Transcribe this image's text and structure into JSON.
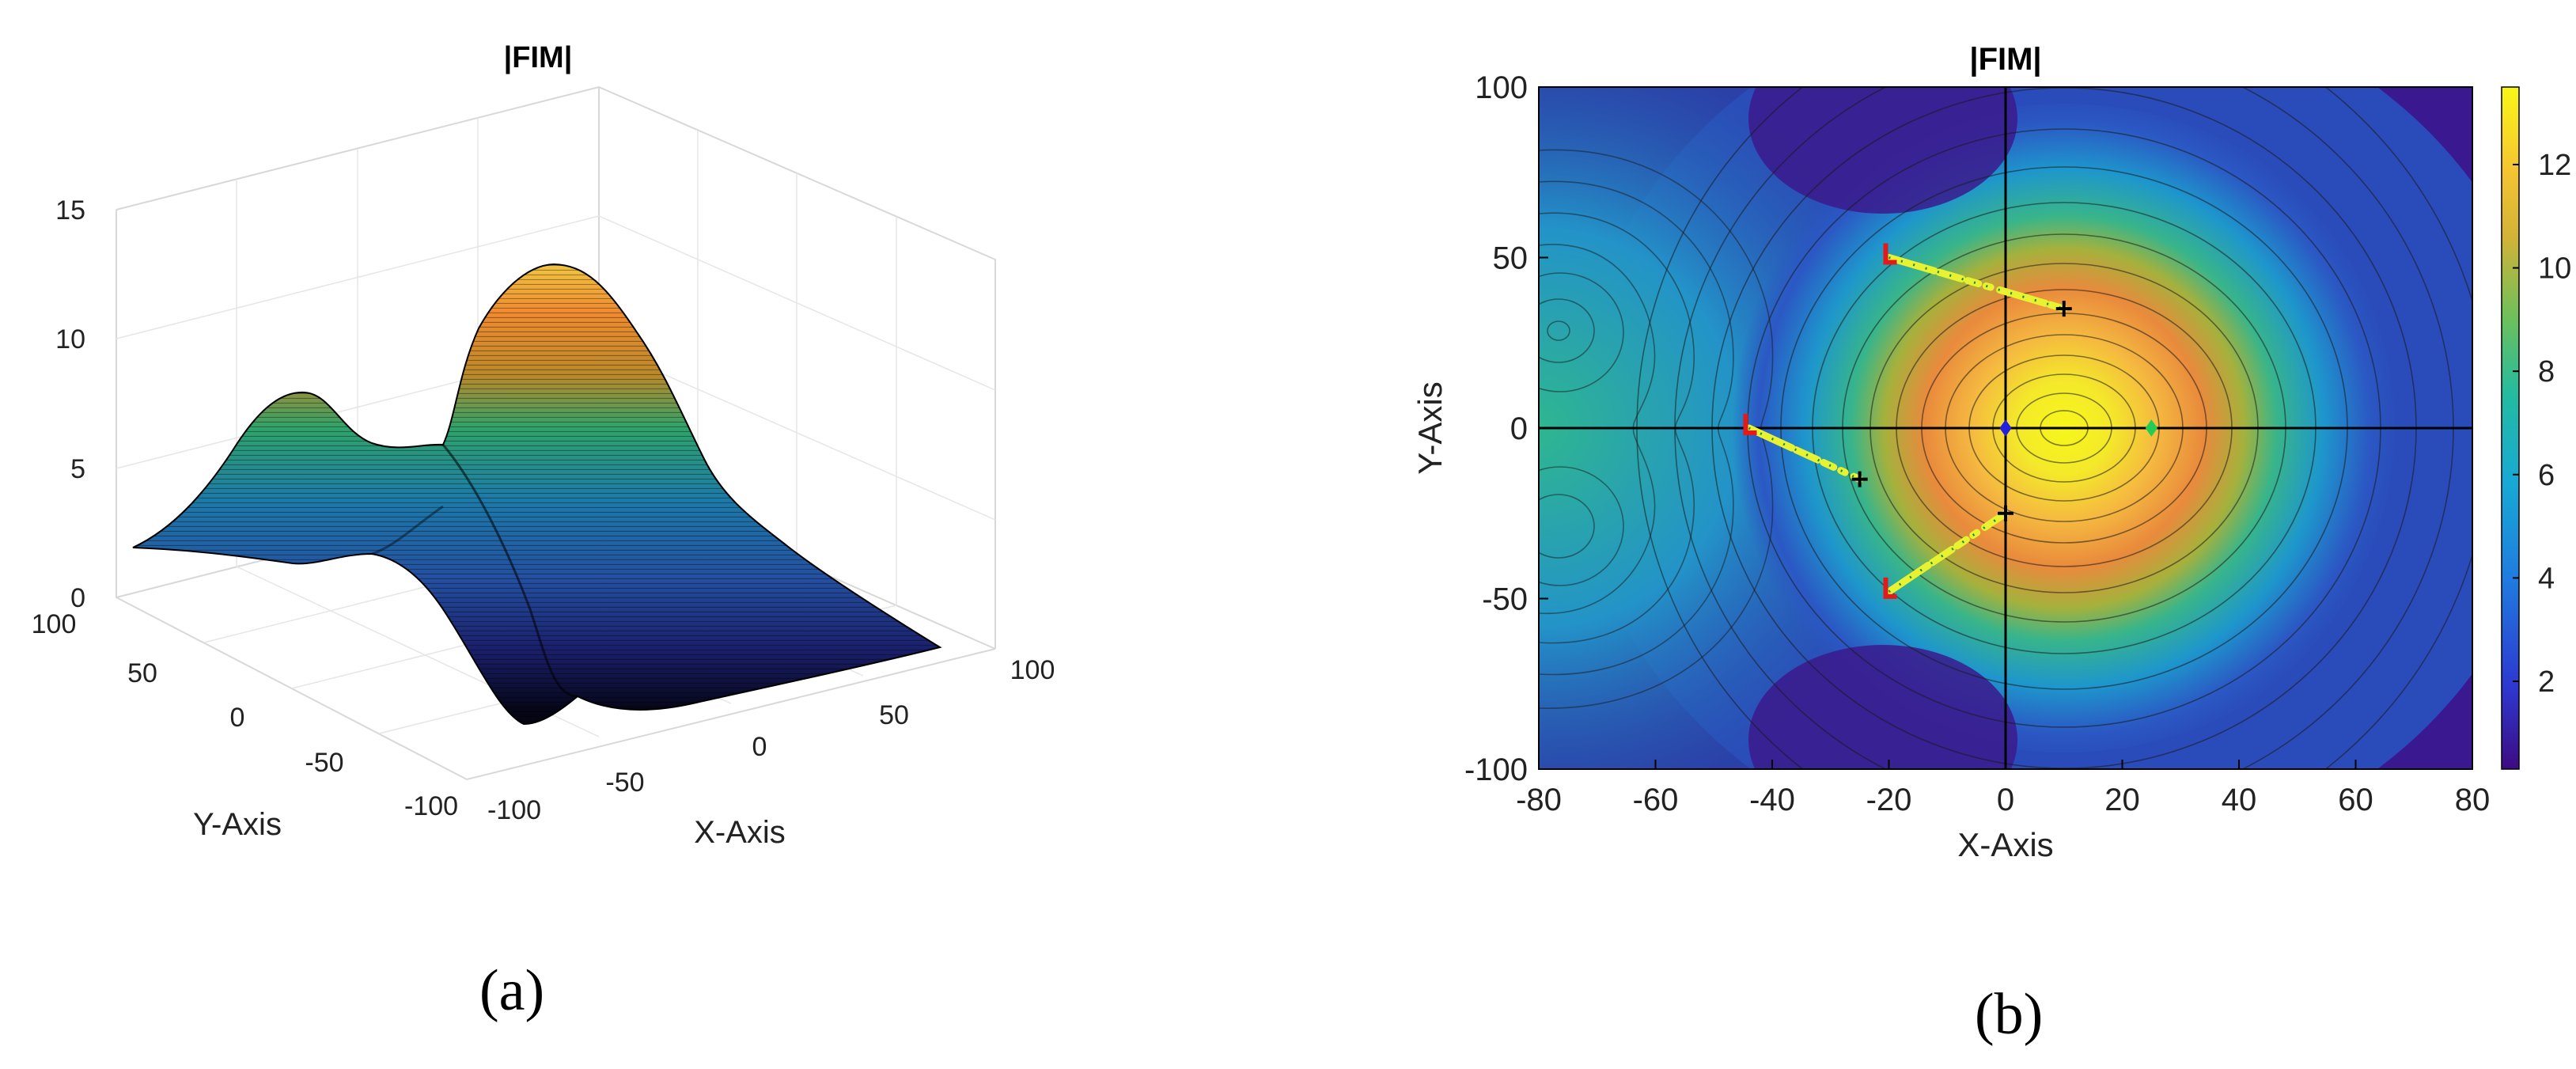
{
  "panels": {
    "a": {
      "label": "(a)"
    },
    "b": {
      "label": "(b)"
    }
  },
  "chart_data": [
    {
      "panel": "(a)",
      "type": "surface",
      "title": "|FIM|",
      "xlabel": "X-Axis",
      "ylabel": "Y-Axis",
      "xlim": [
        -100,
        100
      ],
      "ylim": [
        -100,
        100
      ],
      "zlim": [
        0,
        15
      ],
      "x_ticks": [
        "-100",
        "-50",
        "0",
        "50",
        "100"
      ],
      "y_ticks": [
        "100",
        "50",
        "0",
        "-50",
        "-100"
      ],
      "z_ticks": [
        "15",
        "10",
        "5",
        "0"
      ],
      "peaks": [
        {
          "x": 10,
          "y": 0,
          "z": 13.5
        },
        {
          "x": -65,
          "y": 25,
          "z": 8.5
        },
        {
          "x": -65,
          "y": -25,
          "z": 7.5
        }
      ],
      "grid": true,
      "colormap": "parula"
    },
    {
      "panel": "(b)",
      "type": "heatmap",
      "title": "|FIM|",
      "xlabel": "X-Axis",
      "ylabel": "Y-Axis",
      "xlim": [
        -80,
        80
      ],
      "ylim": [
        -100,
        100
      ],
      "x_ticks": [
        "-80",
        "-60",
        "-40",
        "-20",
        "0",
        "20",
        "40",
        "60",
        "80"
      ],
      "y_ticks": [
        "100",
        "50",
        "0",
        "-50",
        "-100"
      ],
      "colorbar": {
        "range": [
          0.3,
          13.5
        ],
        "ticks": [
          "12",
          "10",
          "8",
          "6",
          "4",
          "2"
        ]
      },
      "colormap": "parula",
      "peaks": [
        {
          "x": 10,
          "y": 0,
          "value": 13.5
        },
        {
          "x": -65,
          "y": 28,
          "value": 8.5
        },
        {
          "x": -65,
          "y": -28,
          "value": 8
        }
      ],
      "trajectories": [
        {
          "start": [
            -20,
            50
          ],
          "end": [
            10,
            35
          ]
        },
        {
          "start": [
            -44,
            0
          ],
          "end": [
            -25,
            -15
          ]
        },
        {
          "start": [
            -20,
            -48
          ],
          "end": [
            0,
            -25
          ]
        }
      ],
      "markers": [
        {
          "shape": "diamond",
          "color": "#2222dd",
          "x": 0,
          "y": 0
        },
        {
          "shape": "diamond",
          "color": "#22cc55",
          "x": 25,
          "y": 0
        }
      ],
      "crosshair": {
        "x": 0,
        "y": 0
      }
    }
  ]
}
